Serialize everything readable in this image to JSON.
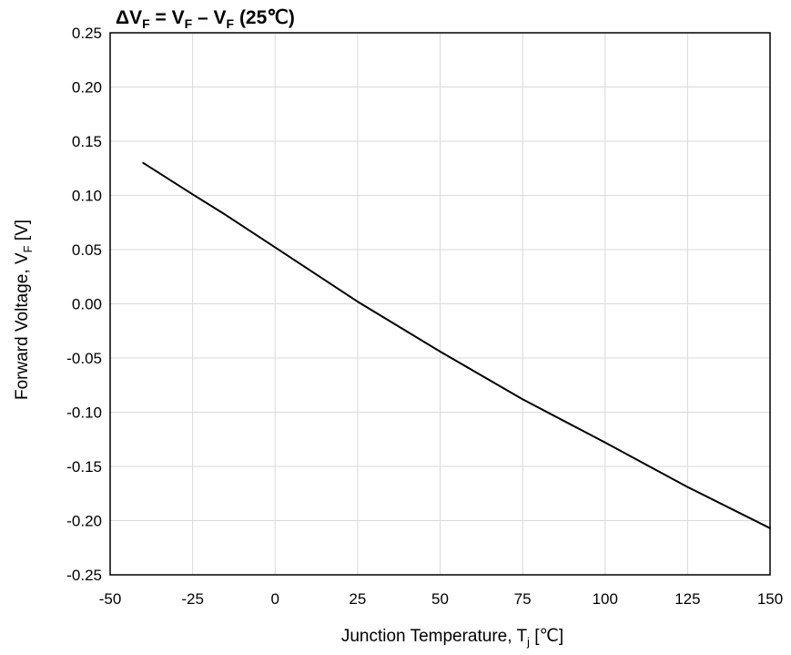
{
  "chart_data": {
    "type": "line",
    "title": {
      "main": "ΔV",
      "sub": "F",
      "rest": " = V",
      "sub2": "F",
      "rest2": " – V",
      "sub3": "F",
      "rest3": " (25℃)"
    },
    "xlabel": {
      "main": "Junction Temperature, T",
      "sub": "j",
      "rest": " [℃]"
    },
    "ylabel": {
      "main": "Forward Voltage, V",
      "sub": "F",
      "rest": " [V]"
    },
    "xlim": [
      -50,
      150
    ],
    "ylim": [
      -0.25,
      0.25
    ],
    "x_ticks": [
      "-50",
      "-25",
      "0",
      "25",
      "50",
      "75",
      "100",
      "125",
      "150"
    ],
    "y_ticks": [
      "0.25",
      "0.20",
      "0.15",
      "0.10",
      "0.05",
      "0.00",
      "-0.05",
      "-0.10",
      "-0.15",
      "-0.20",
      "-0.25"
    ],
    "grid": true,
    "series": [
      {
        "color": "#000000",
        "x": [
          -40,
          -25,
          -15,
          0,
          25,
          50,
          75,
          100,
          125,
          150
        ],
        "y": [
          0.13,
          0.101,
          0.082,
          0.052,
          0.002,
          -0.044,
          -0.088,
          -0.128,
          -0.169,
          -0.207
        ]
      }
    ]
  }
}
